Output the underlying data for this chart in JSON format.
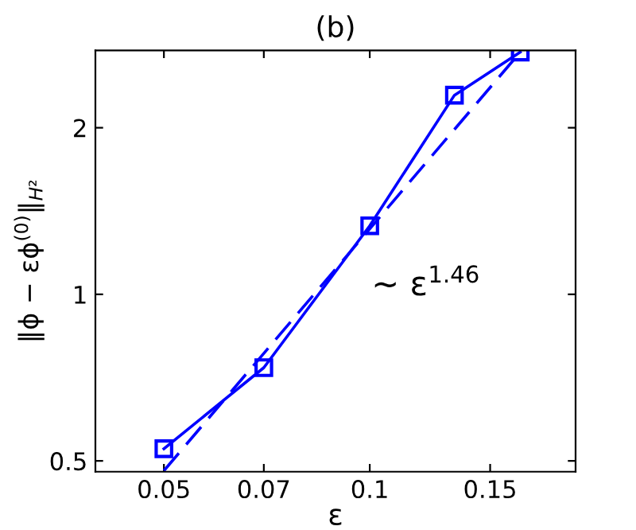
{
  "chart_data": {
    "type": "line",
    "title": "(b)",
    "xlabel": "ε",
    "ylabel": "‖ϕ − εϕ$^{(0)}$‖$_{H²}$",
    "log": "xy",
    "xlim": [
      0.0397,
      0.2
    ],
    "ylim": [
      0.478,
      2.76
    ],
    "xticks": [
      0.05,
      0.07,
      0.1,
      0.15
    ],
    "yticks": [
      0.5,
      1,
      2
    ],
    "grid": false,
    "legend": false,
    "annotations": [
      "~ ε$^{1.46}$"
    ],
    "series": [
      {
        "color": "#0000ff",
        "marker": "square",
        "line_style": "solid",
        "x": [
          0.05,
          0.07,
          0.1,
          0.133,
          0.166
        ],
        "values": [
          0.526,
          0.737,
          1.33,
          2.29,
          2.74
        ]
      },
      {
        "color": "#0000ff",
        "marker": "none",
        "line_style": "dashed",
        "x": [
          0.05,
          0.166
        ],
        "values": [
          0.48,
          2.74
        ]
      }
    ]
  }
}
